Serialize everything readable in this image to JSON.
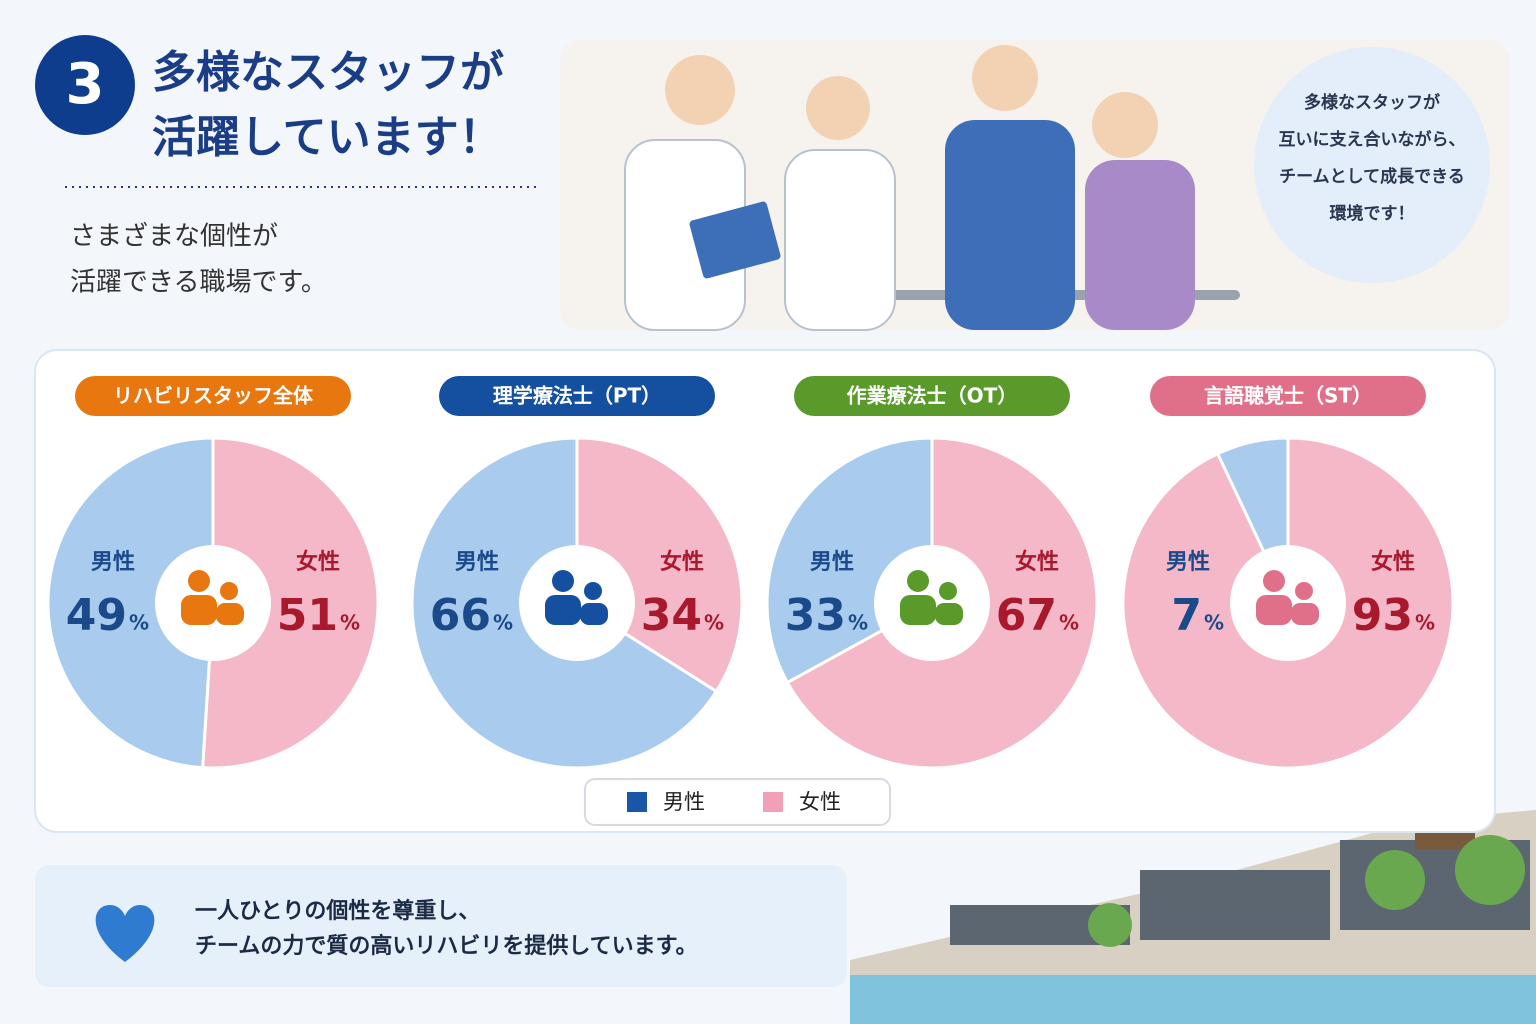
{
  "header": {
    "number": "3",
    "title_lines": [
      "多様なスタッフが",
      "活躍しています！"
    ],
    "subtitle_lines": [
      "さまざまな個性が",
      "活躍できる職場です。"
    ]
  },
  "bubble": {
    "lines": [
      "多様なスタッフが",
      "互いに支え合いながら、",
      "チームとして成長できる",
      "環境です！"
    ]
  },
  "chart_data": [
    {
      "type": "pie",
      "title": "リハビリスタッフ全体",
      "title_color": "#e8770f",
      "categories": [
        "男性",
        "女性"
      ],
      "values": [
        49,
        51
      ],
      "unit": "%",
      "colors": [
        "#a9cbed",
        "#f4b8c8"
      ]
    },
    {
      "type": "pie",
      "title": "理学療法士（PT）",
      "title_color": "#1550a0",
      "categories": [
        "男性",
        "女性"
      ],
      "values": [
        66,
        34
      ],
      "unit": "%",
      "colors": [
        "#a9cbed",
        "#f4b8c8"
      ]
    },
    {
      "type": "pie",
      "title": "作業療法士（OT）",
      "title_color": "#5a9a2a",
      "categories": [
        "男性",
        "女性"
      ],
      "values": [
        33,
        67
      ],
      "unit": "%",
      "colors": [
        "#a9cbed",
        "#f4b8c8"
      ]
    },
    {
      "type": "pie",
      "title": "言語聴覚士（ST）",
      "title_color": "#e0708a",
      "categories": [
        "男性",
        "女性"
      ],
      "values": [
        7,
        93
      ],
      "unit": "%",
      "colors": [
        "#a9cbed",
        "#f4b8c8"
      ]
    }
  ],
  "legend": {
    "items": [
      {
        "name": "男性",
        "color": "#1a56a8"
      },
      {
        "name": "女性",
        "color": "#f2a0b8"
      }
    ]
  },
  "footer": {
    "lines": [
      "一人ひとりの個性を尊重し、",
      "チームの力で質の高いリハビリを提供しています。"
    ]
  }
}
